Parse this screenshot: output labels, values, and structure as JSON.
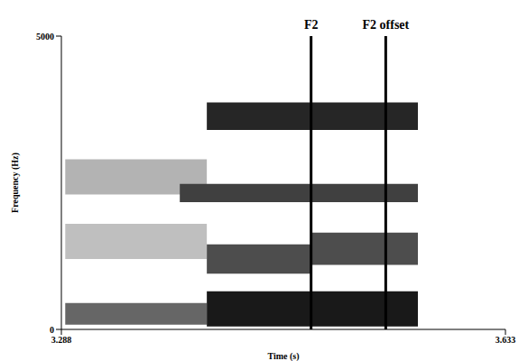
{
  "chart_data": {
    "type": "spectrogram",
    "x_label": "Time (s)",
    "y_label": "Frequency (Hz)",
    "xlim": [
      3.288,
      3.633
    ],
    "ylim": [
      0,
      5000
    ],
    "xticks": [
      3.288,
      3.633
    ],
    "yticks": [
      0,
      5000
    ],
    "bands": [
      {
        "x": [
          3.291,
          3.401
        ],
        "y": [
          1200,
          1800
        ],
        "level": 0.25
      },
      {
        "x": [
          3.291,
          3.401
        ],
        "y": [
          2300,
          2900
        ],
        "level": 0.3
      },
      {
        "x": [
          3.291,
          3.401
        ],
        "y": [
          80,
          450
        ],
        "level": 0.6
      },
      {
        "x": [
          3.401,
          3.482
        ],
        "y": [
          950,
          1450
        ],
        "level": 0.7
      },
      {
        "x": [
          3.482,
          3.565
        ],
        "y": [
          1100,
          1650
        ],
        "level": 0.7
      },
      {
        "x": [
          3.38,
          3.565
        ],
        "y": [
          2170,
          2480
        ],
        "level": 0.75
      },
      {
        "x": [
          3.401,
          3.565
        ],
        "y": [
          3400,
          3870
        ],
        "level": 0.85
      },
      {
        "x": [
          3.401,
          3.565
        ],
        "y": [
          50,
          650
        ],
        "level": 0.9
      }
    ],
    "annotations": [
      {
        "x": 3.482,
        "label": "F2"
      },
      {
        "x": 3.54,
        "label": "F2 offset"
      }
    ]
  }
}
